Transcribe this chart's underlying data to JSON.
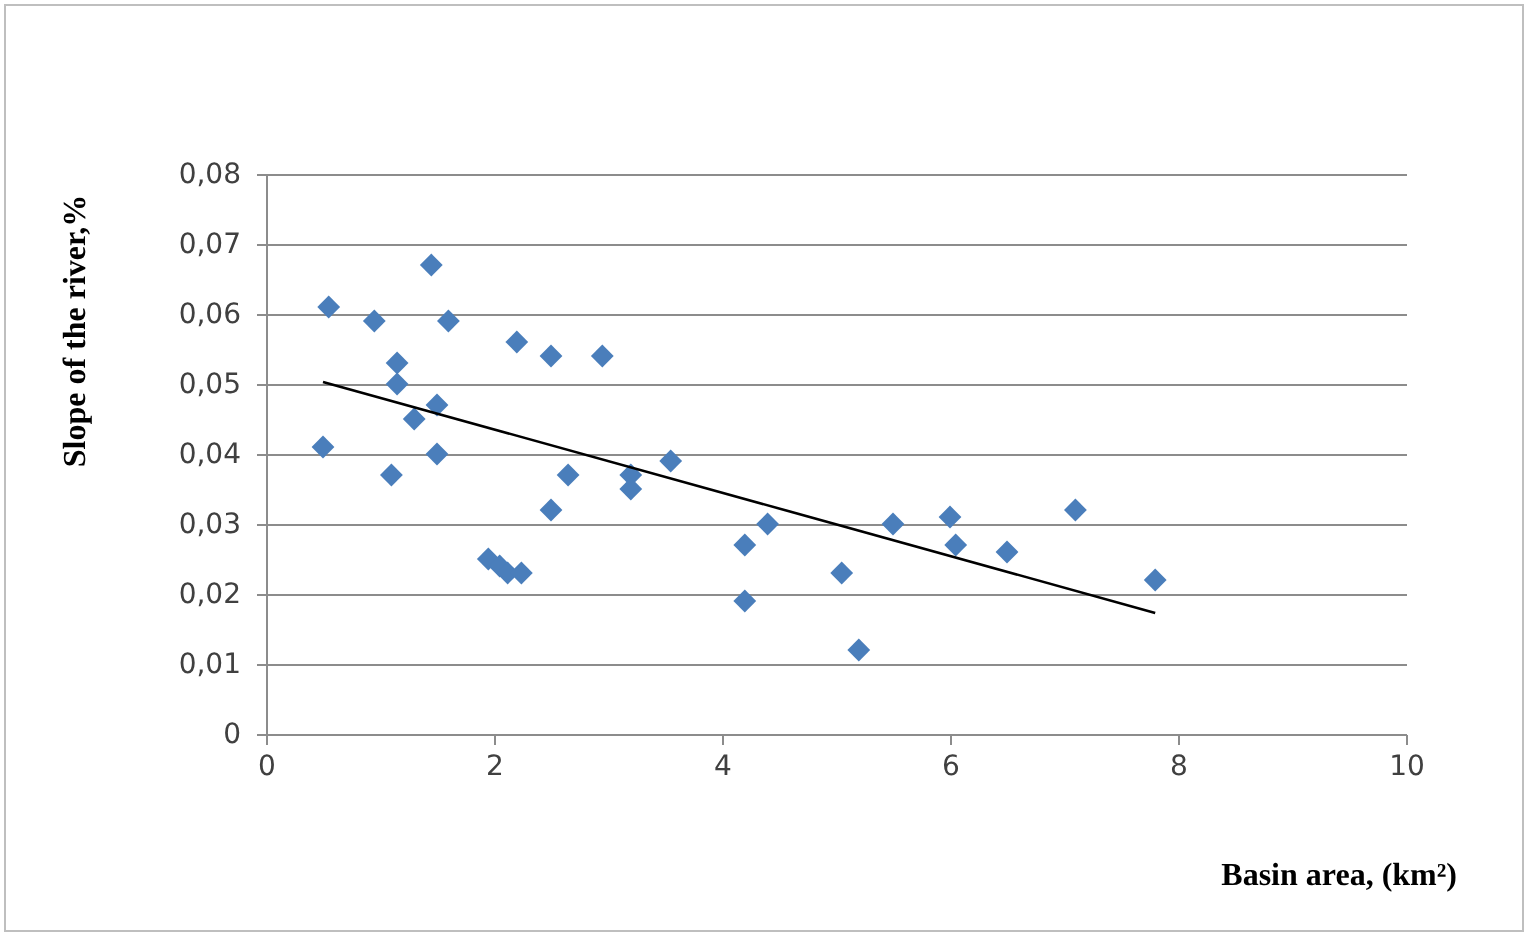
{
  "chart_data": {
    "type": "scatter",
    "xlabel": "Basin area, (km²)",
    "ylabel": "Slope of the river,%",
    "xlim": [
      0,
      10
    ],
    "xticks": [
      0,
      2,
      4,
      6,
      8,
      10
    ],
    "ylim": [
      0,
      0.08
    ],
    "yticks": [
      0,
      {
        "value": 0.01,
        "label": "0,01"
      },
      {
        "value": 0.02,
        "label": "0,02"
      },
      {
        "value": 0.03,
        "label": "0,03"
      },
      {
        "value": 0.04,
        "label": "0,04"
      },
      {
        "value": 0.05,
        "label": "0,05"
      },
      {
        "value": 0.06,
        "label": "0,06"
      },
      {
        "value": 0.07,
        "label": "0,07"
      },
      {
        "value": 0.08,
        "label": "0,08"
      }
    ],
    "grid": "y",
    "series": [
      {
        "color": "#4a7ebb",
        "marker": "diamond",
        "x": [
          0.5,
          0.55,
          0.95,
          1.1,
          1.15,
          1.15,
          1.3,
          1.45,
          1.5,
          1.5,
          1.6,
          1.95,
          2.05,
          2.12,
          2.24,
          2.2,
          2.5,
          2.5,
          2.65,
          2.95,
          3.2,
          3.2,
          3.55,
          4.2,
          4.2,
          4.4,
          5.05,
          5.2,
          5.5,
          6.0,
          6.05,
          6.5,
          7.1,
          7.8
        ],
        "values": [
          0.041,
          0.061,
          0.059,
          0.037,
          0.053,
          0.05,
          0.045,
          0.067,
          0.047,
          0.04,
          0.059,
          0.025,
          0.024,
          0.023,
          0.023,
          0.056,
          0.054,
          0.032,
          0.037,
          0.054,
          0.037,
          0.035,
          0.039,
          0.027,
          0.019,
          0.03,
          0.023,
          0.012,
          0.03,
          0.031,
          0.027,
          0.026,
          0.032,
          0.022
        ]
      },
      {
        "type": "line",
        "color": "#000000",
        "x": [
          0.5,
          7.8
        ],
        "values": [
          0.0503,
          0.0173
        ]
      }
    ]
  }
}
